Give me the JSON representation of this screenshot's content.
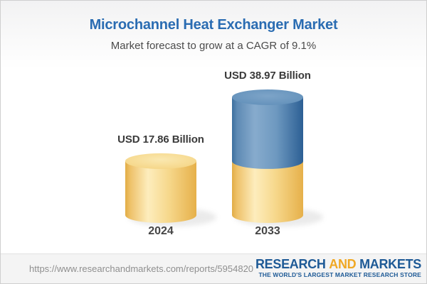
{
  "header": {
    "title": "Microchannel Heat Exchanger Market",
    "subtitle": "Market forecast to grow at a CAGR of 9.1%"
  },
  "chart_data": {
    "type": "bar",
    "bar_style": "3d-cylinder",
    "title": "Microchannel Heat Exchanger Market",
    "subtitle": "Market forecast to grow at a CAGR of 9.1%",
    "cagr": "9.1%",
    "unit": "USD Billion",
    "categories": [
      "2024",
      "2033"
    ],
    "values": [
      17.86,
      38.97
    ],
    "value_labels": [
      "USD 17.86 Billion",
      "USD 38.97 Billion"
    ],
    "colors": {
      "base_gold": "#f2cd74",
      "growth_blue": "#5d8ab4",
      "title_blue": "#2a6cb2",
      "label_dark": "#3a3a3a"
    },
    "layout": {
      "legend": "none",
      "grid": "off",
      "note_growth_segment": "2033 cylinder shows gold base equal to 2024 value with blue growth segment stacked on top"
    }
  },
  "footer": {
    "url": "https://www.researchandmarkets.com/reports/5954820",
    "logo": {
      "research": "RESEARCH",
      "and": "AND",
      "markets": "MARKETS",
      "tagline": "THE WORLD'S LARGEST MARKET RESEARCH STORE"
    }
  }
}
